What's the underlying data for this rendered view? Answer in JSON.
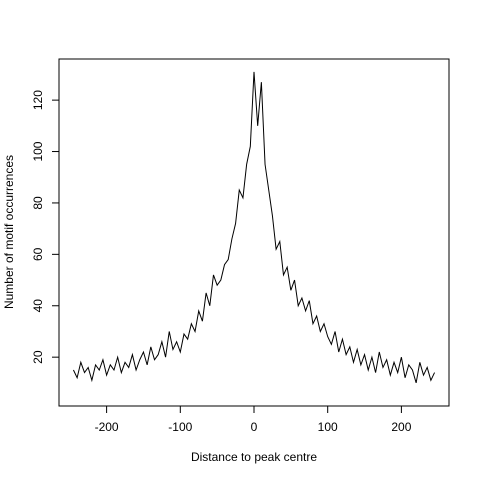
{
  "chart_data": {
    "type": "line",
    "x_label": "Distance to peak centre",
    "y_label": "Number of motif occurrences",
    "x": [
      -245,
      -240,
      -235,
      -230,
      -225,
      -220,
      -215,
      -210,
      -205,
      -200,
      -195,
      -190,
      -185,
      -180,
      -175,
      -170,
      -165,
      -160,
      -155,
      -150,
      -145,
      -140,
      -135,
      -130,
      -125,
      -120,
      -115,
      -110,
      -105,
      -100,
      -95,
      -90,
      -85,
      -80,
      -75,
      -70,
      -65,
      -60,
      -55,
      -50,
      -45,
      -40,
      -35,
      -30,
      -25,
      -20,
      -15,
      -10,
      -5,
      0,
      5,
      10,
      15,
      20,
      25,
      30,
      35,
      40,
      45,
      50,
      55,
      60,
      65,
      70,
      75,
      80,
      85,
      90,
      95,
      100,
      105,
      110,
      115,
      120,
      125,
      130,
      135,
      140,
      145,
      150,
      155,
      160,
      165,
      170,
      175,
      180,
      185,
      190,
      195,
      200,
      205,
      210,
      215,
      220,
      225,
      230,
      235,
      240,
      245
    ],
    "series": [
      {
        "color": "#000000",
        "values": [
          15,
          12,
          18,
          14,
          16,
          11,
          17,
          15,
          19,
          13,
          17,
          15,
          20,
          14,
          18,
          16,
          21,
          15,
          19,
          22,
          17,
          24,
          19,
          21,
          26,
          20,
          30,
          23,
          26,
          22,
          29,
          27,
          33,
          30,
          38,
          34,
          45,
          40,
          52,
          48,
          50,
          56,
          58,
          66,
          72,
          85,
          82,
          95,
          102,
          131,
          110,
          127,
          95,
          85,
          75,
          62,
          65,
          52,
          55,
          46,
          50,
          40,
          43,
          38,
          42,
          33,
          36,
          30,
          33,
          28,
          25,
          30,
          22,
          27,
          21,
          24,
          18,
          23,
          17,
          21,
          15,
          20,
          14,
          22,
          16,
          19,
          13,
          18,
          14,
          20,
          12,
          17,
          15,
          10,
          18,
          13,
          16,
          11,
          14
        ]
      }
    ],
    "xlim": [
      -264.6,
      264.6
    ],
    "ylim": [
      1,
      136
    ],
    "xticks": [
      -200,
      -100,
      0,
      100,
      200
    ],
    "yticks": [
      20,
      40,
      60,
      80,
      100,
      120
    ]
  }
}
